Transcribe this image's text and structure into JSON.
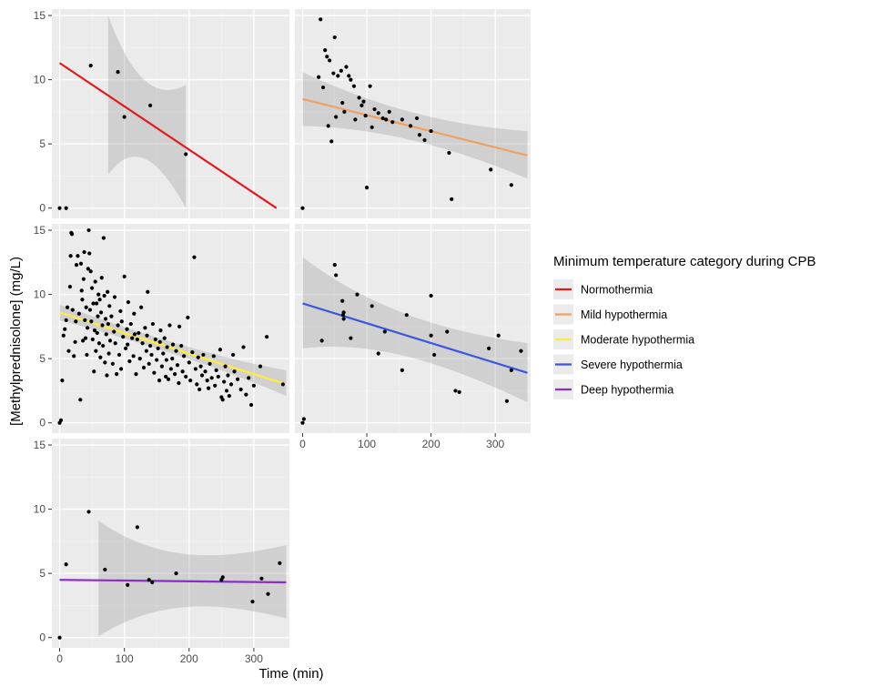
{
  "chart_data": {
    "type": "scatter",
    "subtype": "faceted scatter with linear fit and confidence band",
    "xlabel": "Time (min)",
    "ylabel": "[Methylprednisolone] (mg/L)",
    "xlim": [
      -12,
      355
    ],
    "ylim": [
      -0.8,
      15.5
    ],
    "xticks": [
      0,
      100,
      200,
      300
    ],
    "yticks": [
      0,
      5,
      10,
      15
    ],
    "grid": true,
    "legend": {
      "title": "Minimum temperature category during CPB",
      "position": "right"
    },
    "series": [
      {
        "name": "Normothermia",
        "color": "#e31a1c",
        "fit": [
          [
            0,
            11.3
          ],
          [
            335,
            0.0
          ]
        ],
        "band_x": [
          75,
          195
        ],
        "band_upper_start": 15.0,
        "band_upper_end": 9.6,
        "band_lower_start": 2.6,
        "band_lower_end": 0.0,
        "points": [
          [
            0,
            0
          ],
          [
            10,
            0
          ],
          [
            48,
            11.1
          ],
          [
            90,
            10.6
          ],
          [
            100,
            7.1
          ],
          [
            140,
            8.0
          ],
          [
            195,
            4.2
          ]
        ]
      },
      {
        "name": "Mild hypothermia",
        "color": "#f0a060",
        "fit": [
          [
            0,
            8.5
          ],
          [
            350,
            4.1
          ]
        ],
        "band_x": [
          0,
          350
        ],
        "band_upper_start": 10.6,
        "band_upper_end": 6.0,
        "band_lower_start": 6.4,
        "band_lower_end": 2.3,
        "points": [
          [
            0,
            0
          ],
          [
            25,
            10.2
          ],
          [
            28,
            14.7
          ],
          [
            32,
            9.4
          ],
          [
            35,
            12.3
          ],
          [
            38,
            11.8
          ],
          [
            40,
            6.4
          ],
          [
            42,
            11.5
          ],
          [
            45,
            5.2
          ],
          [
            48,
            10.5
          ],
          [
            50,
            13.3
          ],
          [
            52,
            7.1
          ],
          [
            55,
            10.3
          ],
          [
            60,
            10.7
          ],
          [
            62,
            8.2
          ],
          [
            65,
            7.5
          ],
          [
            68,
            11.0
          ],
          [
            72,
            10.3
          ],
          [
            75,
            10.0
          ],
          [
            80,
            9.5
          ],
          [
            82,
            6.9
          ],
          [
            88,
            8.6
          ],
          [
            92,
            8.0
          ],
          [
            95,
            8.3
          ],
          [
            98,
            7.2
          ],
          [
            100,
            1.6
          ],
          [
            105,
            9.5
          ],
          [
            108,
            6.3
          ],
          [
            112,
            7.7
          ],
          [
            118,
            7.4
          ],
          [
            125,
            7.0
          ],
          [
            130,
            6.9
          ],
          [
            135,
            7.5
          ],
          [
            140,
            6.7
          ],
          [
            155,
            6.9
          ],
          [
            168,
            6.4
          ],
          [
            178,
            7.0
          ],
          [
            182,
            5.7
          ],
          [
            190,
            5.3
          ],
          [
            200,
            6.0
          ],
          [
            228,
            4.3
          ],
          [
            232,
            0.7
          ],
          [
            293,
            3.0
          ],
          [
            325,
            1.8
          ]
        ]
      },
      {
        "name": "Moderate hypothermia",
        "color": "#ffec3d",
        "fit": [
          [
            0,
            8.6
          ],
          [
            350,
            3.0
          ]
        ],
        "band_x": [
          0,
          350
        ],
        "band_upper_start": 9.2,
        "band_upper_end": 4.1,
        "band_lower_start": 8.0,
        "band_lower_end": 2.1,
        "points": [
          [
            0,
            0
          ],
          [
            2,
            0.2
          ],
          [
            4,
            3.3
          ],
          [
            6,
            6.8
          ],
          [
            8,
            7.3
          ],
          [
            10,
            8.0
          ],
          [
            12,
            9.0
          ],
          [
            14,
            5.6
          ],
          [
            16,
            10.6
          ],
          [
            17,
            13.0
          ],
          [
            18,
            14.8
          ],
          [
            19,
            14.7
          ],
          [
            20,
            8.8
          ],
          [
            22,
            5.2
          ],
          [
            24,
            6.3
          ],
          [
            25,
            7.9
          ],
          [
            26,
            12.3
          ],
          [
            28,
            13.0
          ],
          [
            30,
            8.5
          ],
          [
            32,
            1.8
          ],
          [
            33,
            12.4
          ],
          [
            34,
            10.3
          ],
          [
            35,
            9.6
          ],
          [
            36,
            6.4
          ],
          [
            37,
            11.2
          ],
          [
            38,
            13.3
          ],
          [
            39,
            8.0
          ],
          [
            40,
            6.6
          ],
          [
            41,
            9.0
          ],
          [
            42,
            5.3
          ],
          [
            43,
            7.4
          ],
          [
            44,
            12.0
          ],
          [
            45,
            15.0
          ],
          [
            46,
            13.2
          ],
          [
            47,
            8.8
          ],
          [
            48,
            11.8
          ],
          [
            49,
            7.9
          ],
          [
            50,
            10.5
          ],
          [
            51,
            6.5
          ],
          [
            52,
            9.3
          ],
          [
            53,
            4.0
          ],
          [
            54,
            7.2
          ],
          [
            55,
            11.0
          ],
          [
            56,
            5.6
          ],
          [
            57,
            9.3
          ],
          [
            58,
            7.0
          ],
          [
            59,
            8.3
          ],
          [
            60,
            10.0
          ],
          [
            61,
            6.2
          ],
          [
            62,
            9.6
          ],
          [
            63,
            5.1
          ],
          [
            64,
            8.6
          ],
          [
            65,
            11.3
          ],
          [
            66,
            7.6
          ],
          [
            67,
            6.0
          ],
          [
            68,
            14.4
          ],
          [
            69,
            9.9
          ],
          [
            70,
            4.7
          ],
          [
            71,
            8.1
          ],
          [
            72,
            6.9
          ],
          [
            73,
            3.7
          ],
          [
            74,
            10.2
          ],
          [
            75,
            7.7
          ],
          [
            76,
            5.4
          ],
          [
            77,
            9.1
          ],
          [
            78,
            6.4
          ],
          [
            80,
            8.3
          ],
          [
            82,
            4.6
          ],
          [
            84,
            7.1
          ],
          [
            85,
            9.8
          ],
          [
            86,
            6.2
          ],
          [
            88,
            3.8
          ],
          [
            90,
            7.6
          ],
          [
            92,
            5.3
          ],
          [
            94,
            8.7
          ],
          [
            95,
            4.2
          ],
          [
            96,
            7.9
          ],
          [
            98,
            6.7
          ],
          [
            100,
            11.4
          ],
          [
            102,
            5.8
          ],
          [
            104,
            7.3
          ],
          [
            105,
            6.1
          ],
          [
            106,
            9.4
          ],
          [
            108,
            4.8
          ],
          [
            110,
            7.7
          ],
          [
            112,
            6.6
          ],
          [
            114,
            5.2
          ],
          [
            115,
            8.5
          ],
          [
            116,
            6.9
          ],
          [
            118,
            3.8
          ],
          [
            120,
            6.5
          ],
          [
            122,
            7.0
          ],
          [
            124,
            5.0
          ],
          [
            126,
            9.0
          ],
          [
            128,
            6.2
          ],
          [
            130,
            4.3
          ],
          [
            132,
            7.4
          ],
          [
            134,
            5.6
          ],
          [
            135,
            6.8
          ],
          [
            136,
            10.2
          ],
          [
            138,
            4.6
          ],
          [
            140,
            6.0
          ],
          [
            142,
            5.3
          ],
          [
            144,
            7.7
          ],
          [
            146,
            3.9
          ],
          [
            148,
            6.5
          ],
          [
            150,
            4.9
          ],
          [
            152,
            5.8
          ],
          [
            154,
            3.3
          ],
          [
            155,
            6.3
          ],
          [
            156,
            7.2
          ],
          [
            158,
            4.4
          ],
          [
            160,
            5.4
          ],
          [
            162,
            6.6
          ],
          [
            164,
            3.6
          ],
          [
            165,
            4.9
          ],
          [
            166,
            5.9
          ],
          [
            168,
            3.4
          ],
          [
            170,
            7.6
          ],
          [
            172,
            4.2
          ],
          [
            174,
            5.0
          ],
          [
            175,
            6.1
          ],
          [
            178,
            3.8
          ],
          [
            180,
            5.6
          ],
          [
            182,
            4.5
          ],
          [
            184,
            3.1
          ],
          [
            185,
            7.5
          ],
          [
            188,
            6.0
          ],
          [
            190,
            4.0
          ],
          [
            192,
            5.2
          ],
          [
            195,
            3.6
          ],
          [
            198,
            8.2
          ],
          [
            200,
            4.7
          ],
          [
            202,
            3.3
          ],
          [
            205,
            5.5
          ],
          [
            208,
            12.9
          ],
          [
            210,
            4.2
          ],
          [
            212,
            3.0
          ],
          [
            214,
            5.1
          ],
          [
            216,
            2.6
          ],
          [
            218,
            4.4
          ],
          [
            220,
            3.7
          ],
          [
            222,
            5.3
          ],
          [
            225,
            4.0
          ],
          [
            228,
            3.3
          ],
          [
            230,
            2.7
          ],
          [
            232,
            4.6
          ],
          [
            235,
            3.5
          ],
          [
            238,
            5.2
          ],
          [
            240,
            2.9
          ],
          [
            242,
            4.1
          ],
          [
            245,
            3.6
          ],
          [
            248,
            5.7
          ],
          [
            250,
            2.0
          ],
          [
            252,
            1.8
          ],
          [
            254,
            3.2
          ],
          [
            256,
            4.4
          ],
          [
            258,
            2.5
          ],
          [
            260,
            3.7
          ],
          [
            262,
            2.1
          ],
          [
            265,
            3.0
          ],
          [
            268,
            5.3
          ],
          [
            270,
            4.0
          ],
          [
            275,
            3.4
          ],
          [
            280,
            2.6
          ],
          [
            284,
            5.9
          ],
          [
            288,
            2.2
          ],
          [
            292,
            3.5
          ],
          [
            296,
            1.4
          ],
          [
            300,
            2.9
          ],
          [
            310,
            4.4
          ],
          [
            320,
            6.7
          ],
          [
            345,
            3.0
          ]
        ]
      },
      {
        "name": "Severe hypothermia",
        "color": "#3b57e0",
        "fit": [
          [
            0,
            9.3
          ],
          [
            350,
            3.9
          ]
        ],
        "band_x": [
          0,
          350
        ],
        "band_upper_start": 12.9,
        "band_upper_end": 6.2,
        "band_lower_start": 5.8,
        "band_lower_end": 1.6,
        "points": [
          [
            0,
            0
          ],
          [
            2,
            0.3
          ],
          [
            30,
            6.4
          ],
          [
            50,
            12.3
          ],
          [
            52,
            11.5
          ],
          [
            62,
            9.5
          ],
          [
            63,
            8.4
          ],
          [
            64,
            8.1
          ],
          [
            64,
            8.6
          ],
          [
            75,
            6.6
          ],
          [
            85,
            10.0
          ],
          [
            108,
            9.1
          ],
          [
            118,
            5.4
          ],
          [
            128,
            7.1
          ],
          [
            155,
            4.1
          ],
          [
            162,
            8.4
          ],
          [
            200,
            9.9
          ],
          [
            200,
            6.8
          ],
          [
            205,
            5.3
          ],
          [
            225,
            7.1
          ],
          [
            238,
            2.5
          ],
          [
            244,
            2.4
          ],
          [
            290,
            5.8
          ],
          [
            305,
            6.8
          ],
          [
            318,
            1.7
          ],
          [
            325,
            4.1
          ],
          [
            340,
            5.6
          ]
        ]
      },
      {
        "name": "Deep hypothermia",
        "color": "#8a2ec8",
        "fit": [
          [
            0,
            4.5
          ],
          [
            350,
            4.3
          ]
        ],
        "band_x": [
          60,
          350
        ],
        "band_upper_start": 9.1,
        "band_upper_end": 7.2,
        "band_lower_start": 0.1,
        "band_lower_end": 1.5,
        "points": [
          [
            0,
            0
          ],
          [
            10,
            5.7
          ],
          [
            45,
            9.8
          ],
          [
            70,
            5.3
          ],
          [
            105,
            4.1
          ],
          [
            120,
            8.6
          ],
          [
            138,
            4.5
          ],
          [
            143,
            4.3
          ],
          [
            180,
            5.0
          ],
          [
            250,
            4.5
          ],
          [
            252,
            4.7
          ],
          [
            298,
            2.8
          ],
          [
            312,
            4.6
          ],
          [
            322,
            3.4
          ],
          [
            340,
            5.8
          ]
        ]
      }
    ]
  }
}
